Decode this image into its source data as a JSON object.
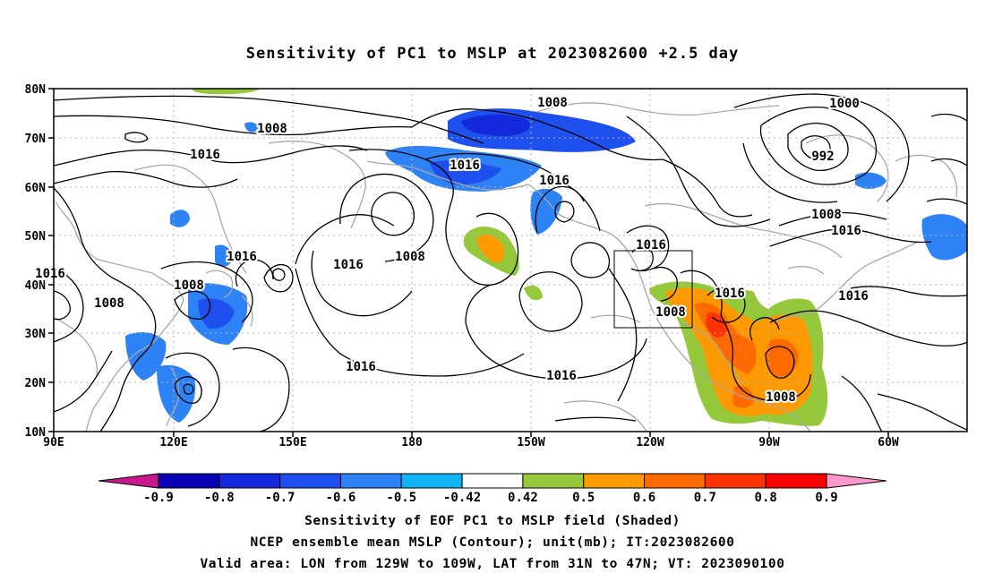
{
  "title": "Sensitivity of PC1 to MSLP at 2023082600 +2.5 day",
  "axes": {
    "lon_ticks": [
      "90E",
      "120E",
      "150E",
      "180",
      "150W",
      "120W",
      "90W",
      "60W"
    ],
    "lat_ticks": [
      "80N",
      "70N",
      "60N",
      "50N",
      "40N",
      "30N",
      "20N",
      "10N"
    ]
  },
  "contour_labels": [
    "1008",
    "1016",
    "1000",
    "992",
    "1016",
    "1008",
    "1016",
    "1016",
    "1016",
    "1008",
    "1016",
    "1008",
    "1008",
    "1016",
    "1016",
    "1016",
    "1008",
    "1016",
    "1016",
    "1008",
    "1016",
    "1008"
  ],
  "valid_area": {
    "lon_west": 129,
    "lon_east": 109,
    "lat_south": 31,
    "lat_north": 47
  },
  "colorbar": {
    "labels": [
      "-0.9",
      "-0.8",
      "-0.7",
      "-0.6",
      "-0.5",
      "-0.42",
      "0.42",
      "0.5",
      "0.6",
      "0.7",
      "0.8",
      "0.9"
    ],
    "colors": [
      "#c8198c",
      "#0a00b4",
      "#1428dc",
      "#1e50f0",
      "#2d82f5",
      "#11b4f5",
      "#ffffff",
      "#96c83c",
      "#ff9900",
      "#ff6a00",
      "#ff3300",
      "#ff0000",
      "#ff99cc"
    ]
  },
  "footer": {
    "line1": "Sensitivity of EOF PC1 to MSLP field (Shaded)",
    "line2": "NCEP ensemble mean MSLP (Contour); unit(mb); IT:2023082600",
    "line3": "Valid area: LON from 129W to 109W, LAT from 31N to 47N; VT: 2023090100"
  }
}
